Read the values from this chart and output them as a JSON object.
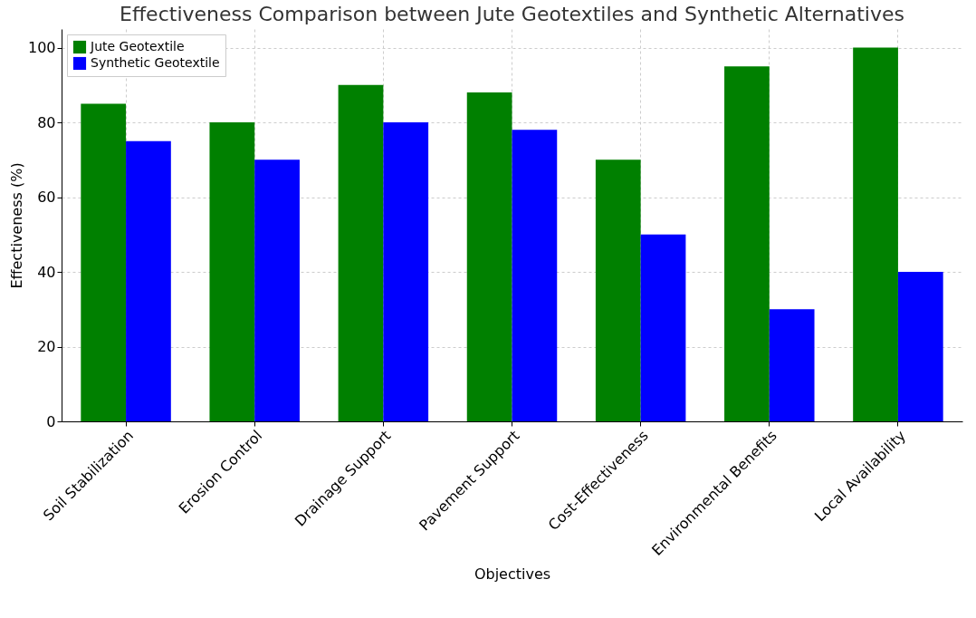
{
  "chart_data": {
    "type": "bar",
    "title": "Effectiveness Comparison between Jute Geotextiles and Synthetic Alternatives",
    "xlabel": "Objectives",
    "ylabel": "Effectiveness (%)",
    "categories": [
      "Soil Stabilization",
      "Erosion Control",
      "Drainage Support",
      "Pavement Support",
      "Cost-Effectiveness",
      "Environmental Benefits",
      "Local Availability"
    ],
    "series": [
      {
        "name": "Jute Geotextile",
        "color": "#008000",
        "values": [
          85,
          80,
          90,
          88,
          70,
          95,
          100
        ]
      },
      {
        "name": "Synthetic Geotextile",
        "color": "#0000ff",
        "values": [
          75,
          70,
          80,
          78,
          50,
          30,
          40
        ]
      }
    ],
    "ylim": [
      0,
      105
    ],
    "yticks": [
      0,
      20,
      40,
      60,
      80,
      100
    ],
    "grid": true,
    "legend": "top left"
  }
}
